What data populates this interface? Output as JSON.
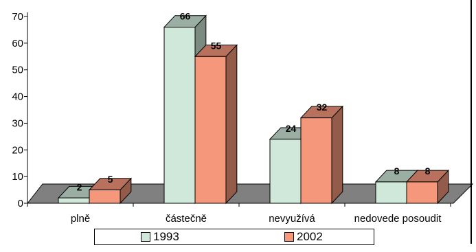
{
  "chart_data": {
    "type": "bar",
    "style": "3d-clustered",
    "categories": [
      "plně",
      "částečně",
      "nevyužívá",
      "nedovede posoudit"
    ],
    "series": [
      {
        "name": "1993",
        "values": [
          2,
          66,
          24,
          8
        ],
        "color": "#cfe8d9"
      },
      {
        "name": "2002",
        "values": [
          5,
          55,
          32,
          8
        ],
        "color": "#f4977b"
      }
    ],
    "yticks": [
      0,
      10,
      20,
      30,
      40,
      50,
      60,
      70
    ],
    "ylim": [
      0,
      70
    ],
    "floor_color": "#808080",
    "legend_position": "bottom"
  }
}
